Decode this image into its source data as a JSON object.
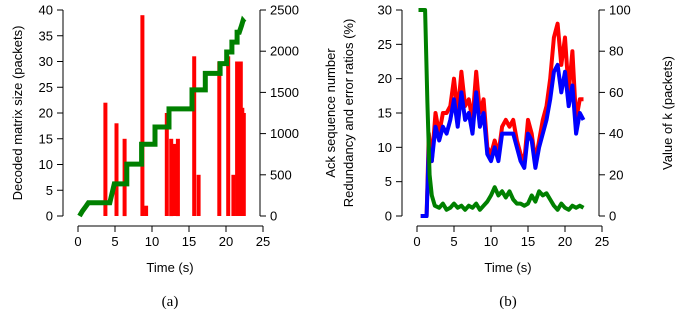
{
  "chart_data": [
    {
      "panel": "a",
      "type": "bar+line",
      "caption": "(a)",
      "xlabel": "Time (s)",
      "ylabel_left": "Decoded matrix size (packets)",
      "ylabel_right": "Ack sequence number",
      "xlim": [
        0,
        25
      ],
      "ylim_left": [
        0,
        40
      ],
      "ylim_right": [
        0,
        2500
      ],
      "x_ticks": [
        "0",
        "5",
        "10",
        "15",
        "20",
        "25"
      ],
      "y_left_ticks": [
        "0",
        "5",
        "10",
        "15",
        "20",
        "25",
        "30",
        "35",
        "40"
      ],
      "y_right_ticks": [
        "0",
        "500",
        "1000",
        "1500",
        "2000",
        "2500"
      ],
      "colors": {
        "bars": "#ff0000",
        "ack": "#008000"
      },
      "bars": {
        "axis": "left",
        "x": [
          3.7,
          5.2,
          6.3,
          8.7,
          9.2,
          12.0,
          12.6,
          13.1,
          13.5,
          15.7,
          16.3,
          19.1,
          20.3,
          21.0,
          21.5,
          22.0,
          22.2,
          22.4
        ],
        "values": [
          22,
          18,
          15,
          39,
          2,
          20,
          15,
          14,
          15,
          31,
          8,
          30,
          31,
          8,
          30,
          30,
          21,
          20
        ]
      },
      "ack_sequence": {
        "axis": "right",
        "x": [
          0.2,
          0.6,
          1.1,
          1.4,
          2.9,
          4.3,
          4.9,
          6.6,
          6.6,
          8.6,
          8.6,
          9.1,
          10.4,
          10.4,
          12.3,
          12.3,
          12.8,
          15.4,
          15.4,
          17.2,
          17.2,
          19.2,
          19.2,
          20.1,
          20.1,
          20.8,
          20.8,
          21.5,
          21.5,
          21.8,
          22.1,
          22.3,
          22.5
        ],
        "values": [
          0,
          60,
          120,
          160,
          160,
          160,
          390,
          390,
          630,
          630,
          870,
          870,
          870,
          1080,
          1080,
          1300,
          1300,
          1300,
          1530,
          1530,
          1730,
          1730,
          1850,
          1850,
          1990,
          1990,
          2110,
          2110,
          2230,
          2230,
          2310,
          2370,
          2350
        ]
      }
    },
    {
      "panel": "b",
      "type": "line",
      "caption": "(b)",
      "xlabel": "Time (s)",
      "ylabel_left": "Redundancy and error ratios (%)",
      "ylabel_right": "Value of k (packets)",
      "xlim": [
        0,
        25
      ],
      "ylim_left": [
        0,
        30
      ],
      "ylim_right": [
        0,
        100
      ],
      "x_ticks": [
        "0",
        "5",
        "10",
        "15",
        "20",
        "25"
      ],
      "y_left_ticks": [
        "0",
        "5",
        "10",
        "15",
        "20",
        "25",
        "30"
      ],
      "y_right_ticks": [
        "0",
        "20",
        "40",
        "60",
        "80",
        "100"
      ],
      "colors": {
        "red": "#ff0000",
        "blue": "#0000ff",
        "green": "#008000"
      },
      "series": [
        {
          "color": "red",
          "axis": "left",
          "x": [
            0.5,
            1.3,
            1.6,
            2.0,
            2.5,
            3.0,
            3.5,
            4.0,
            4.5,
            5.0,
            5.5,
            6.0,
            6.5,
            7.0,
            7.5,
            8.0,
            8.5,
            9.0,
            9.5,
            10.0,
            10.5,
            11.0,
            11.5,
            12.0,
            12.5,
            13.0,
            13.5,
            14.0,
            14.5,
            15.0,
            15.5,
            16.0,
            16.5,
            17.0,
            17.5,
            18.0,
            18.5,
            19.0,
            19.5,
            20.0,
            20.5,
            21.0,
            21.5,
            22.0,
            22.5
          ],
          "values": [
            0,
            0,
            12,
            8,
            15,
            12,
            15,
            15,
            16,
            20,
            15,
            21,
            16,
            17,
            14,
            21,
            15,
            17,
            10,
            9,
            11,
            9,
            13,
            14,
            13,
            14,
            11,
            9,
            8,
            14,
            12,
            8,
            11,
            14,
            16,
            20,
            26,
            28,
            22,
            26,
            18,
            24,
            14,
            17,
            17
          ]
        },
        {
          "color": "blue",
          "axis": "left",
          "x": [
            0.5,
            1.3,
            1.6,
            2.0,
            2.5,
            3.0,
            3.5,
            4.0,
            4.5,
            5.0,
            5.5,
            6.0,
            6.5,
            7.0,
            7.5,
            8.0,
            8.5,
            9.0,
            9.5,
            10.0,
            10.5,
            11.0,
            11.5,
            12.0,
            12.5,
            13.0,
            13.5,
            14.0,
            14.5,
            15.0,
            15.5,
            16.0,
            16.5,
            17.0,
            17.5,
            18.0,
            18.5,
            19.0,
            19.5,
            20.0,
            20.5,
            21.0,
            21.5,
            22.0,
            22.5
          ],
          "values": [
            0,
            0,
            10,
            8,
            13,
            11,
            13,
            12,
            14,
            17,
            13,
            18,
            14,
            15,
            12,
            18,
            13,
            15,
            9,
            8,
            10,
            8,
            12,
            12,
            12,
            12,
            10,
            8,
            7,
            12,
            11,
            7,
            10,
            12,
            14,
            17,
            21,
            22,
            18,
            21,
            16,
            19,
            12,
            15,
            14
          ]
        },
        {
          "color": "green",
          "axis": "right",
          "x": [
            0.2,
            1.1,
            1.4,
            1.7,
            2.0,
            2.4,
            3.0,
            3.5,
            4.0,
            4.5,
            5.0,
            5.5,
            6.0,
            6.5,
            7.0,
            7.5,
            8.0,
            8.5,
            9.0,
            9.5,
            10.0,
            10.5,
            11.0,
            11.5,
            12.0,
            12.5,
            13.0,
            13.5,
            14.0,
            14.5,
            15.0,
            15.5,
            16.0,
            16.5,
            17.0,
            17.5,
            18.0,
            18.5,
            19.0,
            19.5,
            20.0,
            20.5,
            21.0,
            21.5,
            22.0,
            22.5
          ],
          "values": [
            100,
            100,
            55,
            20,
            10,
            5,
            4,
            6,
            3,
            4,
            6,
            4,
            5,
            3,
            5,
            4,
            6,
            3,
            5,
            7,
            10,
            14,
            10,
            12,
            9,
            12,
            8,
            6,
            6,
            5,
            6,
            10,
            7,
            12,
            10,
            11,
            8,
            5,
            3,
            6,
            4,
            3,
            5,
            4,
            5,
            4
          ]
        }
      ]
    }
  ]
}
